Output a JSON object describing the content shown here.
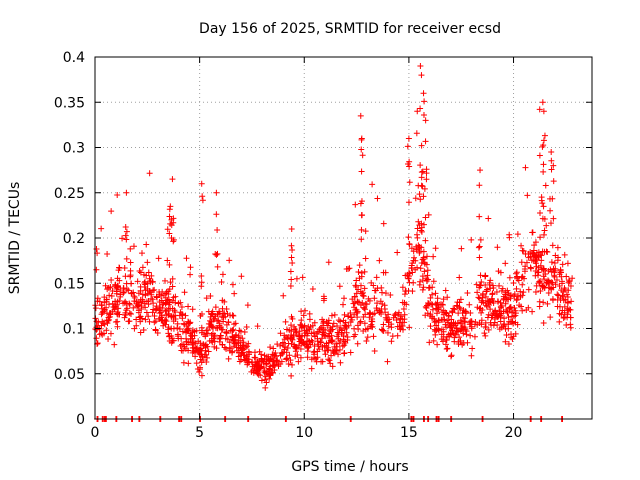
{
  "chart_data": {
    "type": "scatter",
    "title": "Day 156 of 2025, SRMTID for receiver ecsd",
    "xlabel": "GPS time / hours",
    "ylabel": "SRMTID / TECUs",
    "xlim": [
      0,
      23.75
    ],
    "ylim": [
      0,
      0.4
    ],
    "x_ticks": [
      0,
      5,
      10,
      15,
      20
    ],
    "x_tick_labels": [
      "0",
      "5",
      "10",
      "15",
      "20"
    ],
    "y_ticks": [
      0,
      0.05,
      0.1,
      0.15,
      0.2,
      0.25,
      0.3,
      0.35,
      0.4
    ],
    "y_tick_labels": [
      "0",
      "0.05",
      "0.1",
      "0.15",
      "0.2",
      "0.25",
      "0.3",
      "0.35",
      "0.4"
    ],
    "grid": true,
    "marker": "+",
    "color": "#ff0000",
    "trend": [
      {
        "x": 0.0,
        "y": 0.11
      },
      {
        "x": 0.5,
        "y": 0.12
      },
      {
        "x": 1.0,
        "y": 0.13
      },
      {
        "x": 1.5,
        "y": 0.15
      },
      {
        "x": 2.0,
        "y": 0.13
      },
      {
        "x": 2.5,
        "y": 0.14
      },
      {
        "x": 3.0,
        "y": 0.12
      },
      {
        "x": 3.5,
        "y": 0.12
      },
      {
        "x": 4.0,
        "y": 0.11
      },
      {
        "x": 4.5,
        "y": 0.09
      },
      {
        "x": 5.0,
        "y": 0.07
      },
      {
        "x": 5.5,
        "y": 0.1
      },
      {
        "x": 6.0,
        "y": 0.11
      },
      {
        "x": 6.5,
        "y": 0.09
      },
      {
        "x": 7.0,
        "y": 0.08
      },
      {
        "x": 7.5,
        "y": 0.06
      },
      {
        "x": 8.0,
        "y": 0.055
      },
      {
        "x": 8.5,
        "y": 0.065
      },
      {
        "x": 9.0,
        "y": 0.075
      },
      {
        "x": 9.5,
        "y": 0.09
      },
      {
        "x": 10.0,
        "y": 0.09
      },
      {
        "x": 10.5,
        "y": 0.085
      },
      {
        "x": 11.0,
        "y": 0.09
      },
      {
        "x": 11.5,
        "y": 0.085
      },
      {
        "x": 12.0,
        "y": 0.1
      },
      {
        "x": 12.5,
        "y": 0.13
      },
      {
        "x": 13.0,
        "y": 0.12
      },
      {
        "x": 13.5,
        "y": 0.13
      },
      {
        "x": 14.0,
        "y": 0.11
      },
      {
        "x": 14.5,
        "y": 0.1
      },
      {
        "x": 15.0,
        "y": 0.15
      },
      {
        "x": 15.5,
        "y": 0.2
      },
      {
        "x": 16.0,
        "y": 0.12
      },
      {
        "x": 16.5,
        "y": 0.11
      },
      {
        "x": 17.0,
        "y": 0.1
      },
      {
        "x": 17.5,
        "y": 0.1
      },
      {
        "x": 18.0,
        "y": 0.11
      },
      {
        "x": 18.5,
        "y": 0.13
      },
      {
        "x": 19.0,
        "y": 0.12
      },
      {
        "x": 19.5,
        "y": 0.12
      },
      {
        "x": 20.0,
        "y": 0.12
      },
      {
        "x": 20.5,
        "y": 0.15
      },
      {
        "x": 21.0,
        "y": 0.17
      },
      {
        "x": 21.5,
        "y": 0.16
      },
      {
        "x": 22.0,
        "y": 0.15
      },
      {
        "x": 22.5,
        "y": 0.13
      },
      {
        "x": 22.8,
        "y": 0.13
      }
    ],
    "spikes": [
      {
        "x": 1.5,
        "y": 0.25
      },
      {
        "x": 3.6,
        "y": 0.235
      },
      {
        "x": 3.7,
        "y": 0.265
      },
      {
        "x": 5.1,
        "y": 0.26
      },
      {
        "x": 5.8,
        "y": 0.25
      },
      {
        "x": 9.4,
        "y": 0.21
      },
      {
        "x": 12.7,
        "y": 0.335
      },
      {
        "x": 12.75,
        "y": 0.31
      },
      {
        "x": 15.0,
        "y": 0.31
      },
      {
        "x": 15.4,
        "y": 0.34
      },
      {
        "x": 15.55,
        "y": 0.39
      },
      {
        "x": 15.6,
        "y": 0.38
      },
      {
        "x": 15.7,
        "y": 0.36
      },
      {
        "x": 15.8,
        "y": 0.33
      },
      {
        "x": 18.4,
        "y": 0.275
      },
      {
        "x": 21.4,
        "y": 0.35
      },
      {
        "x": 21.45,
        "y": 0.34
      },
      {
        "x": 21.8,
        "y": 0.295
      },
      {
        "x": 21.9,
        "y": 0.28
      }
    ],
    "zero_points_x": [
      0.1,
      0.35,
      0.45,
      0.5,
      1.0,
      1.75,
      2.1,
      3.1,
      4.0,
      4.1,
      5.0,
      6.2,
      7.3,
      9.1,
      12.2,
      15.1,
      15.2,
      15.7,
      15.9,
      16.3,
      16.4,
      17.0,
      18.5,
      20.8,
      21.3,
      22.3
    ]
  }
}
